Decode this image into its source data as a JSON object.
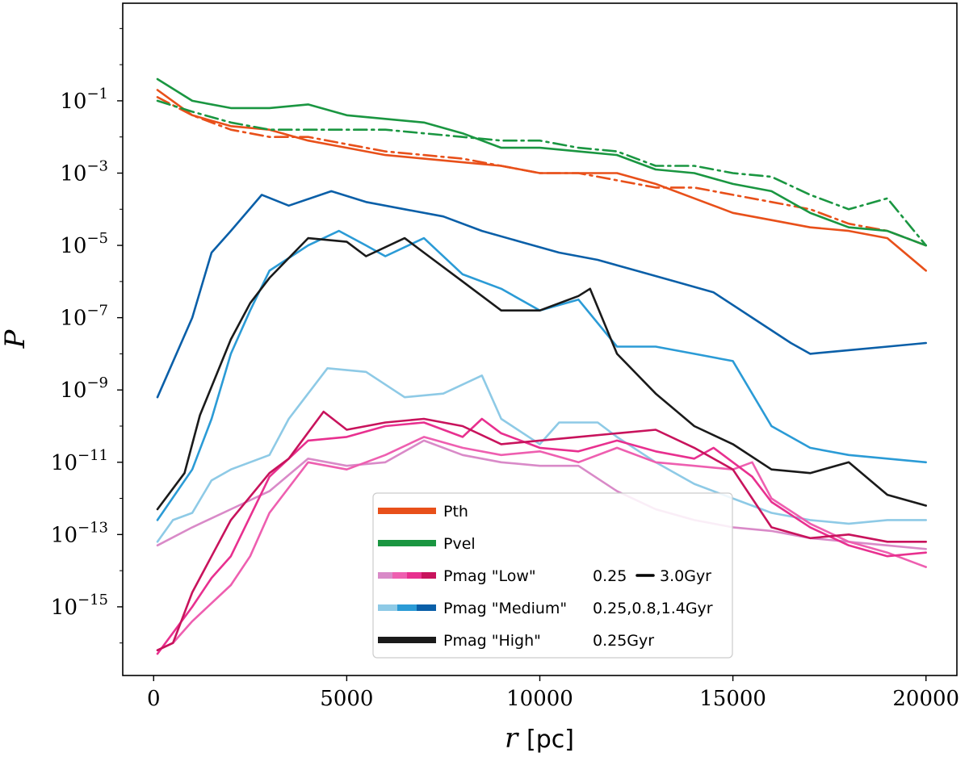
{
  "chart_data": {
    "type": "line",
    "xlabel": "r",
    "xlabel_unit": "[pc]",
    "ylabel": "P",
    "xlim": [
      -800,
      20800
    ],
    "ylim_log10": [
      -16.9,
      1.7
    ],
    "yscale": "log",
    "xticks": [
      0,
      5000,
      10000,
      15000,
      20000
    ],
    "xtick_labels": [
      "0",
      "5000",
      "10000",
      "15000",
      "20000"
    ],
    "yticks_exp": [
      -1,
      -3,
      -5,
      -7,
      -9,
      -11,
      -13,
      -15
    ],
    "ytick_base": "10",
    "ytick_exponents": [
      "−1",
      "−3",
      "−5",
      "−7",
      "−9",
      "−11",
      "−13",
      "−15"
    ],
    "colors": {
      "pth": "#e8501a",
      "pvel": "#1a9641",
      "low": [
        "#d98ac8",
        "#ee5fb0",
        "#e8308f",
        "#c8135c"
      ],
      "medium": [
        "#8ecae6",
        "#2b9bd6",
        "#0a5fa8"
      ],
      "high": "#1a1a1a"
    },
    "legend": {
      "position": "lower-center",
      "entries": [
        {
          "label": "Pth",
          "extra": ""
        },
        {
          "label": "Pvel",
          "extra": ""
        },
        {
          "label": "Pmag \"Low\"",
          "extra_left": "0.25",
          "extra_right": "3.0Gyr"
        },
        {
          "label": "Pmag \"Medium\"",
          "extra": "0.25,0.8,1.4Gyr"
        },
        {
          "label": "Pmag \"High\"",
          "extra": "0.25Gyr"
        }
      ]
    },
    "series": [
      {
        "name": "Pth solid",
        "color": "#e8501a",
        "dash": "solid",
        "x": [
          100,
          1000,
          2000,
          3000,
          4000,
          5000,
          6000,
          7000,
          8000,
          9000,
          10000,
          11000,
          12000,
          13000,
          14000,
          15000,
          16000,
          17000,
          18000,
          19000,
          20000
        ],
        "y": [
          -0.7,
          -1.4,
          -1.7,
          -1.8,
          -2.1,
          -2.3,
          -2.5,
          -2.6,
          -2.7,
          -2.8,
          -3.0,
          -3.0,
          -3.0,
          -3.3,
          -3.7,
          -4.1,
          -4.3,
          -4.5,
          -4.6,
          -4.8,
          -5.7
        ]
      },
      {
        "name": "Pth dashdot",
        "color": "#e8501a",
        "dash": "dashdot",
        "x": [
          100,
          1000,
          2000,
          3000,
          4000,
          5000,
          6000,
          7000,
          8000,
          9000,
          10000,
          11000,
          12000,
          13000,
          14000,
          15000,
          16000,
          17000,
          18000,
          19000,
          20000
        ],
        "y": [
          -0.9,
          -1.4,
          -1.8,
          -2.0,
          -2.0,
          -2.2,
          -2.4,
          -2.5,
          -2.6,
          -2.8,
          -3.0,
          -3.0,
          -3.2,
          -3.4,
          -3.4,
          -3.6,
          -3.8,
          -4.0,
          -4.4,
          -4.6,
          -5.0
        ]
      },
      {
        "name": "Pvel solid",
        "color": "#1a9641",
        "dash": "solid",
        "x": [
          100,
          1000,
          2000,
          3000,
          4000,
          5000,
          6000,
          7000,
          8000,
          9000,
          10000,
          11000,
          12000,
          13000,
          14000,
          15000,
          16000,
          17000,
          18000,
          19000,
          20000
        ],
        "y": [
          -0.4,
          -1.0,
          -1.2,
          -1.2,
          -1.1,
          -1.4,
          -1.5,
          -1.6,
          -1.9,
          -2.3,
          -2.3,
          -2.4,
          -2.5,
          -2.9,
          -3.0,
          -3.3,
          -3.5,
          -4.1,
          -4.5,
          -4.6,
          -5.0
        ]
      },
      {
        "name": "Pvel dashdot",
        "color": "#1a9641",
        "dash": "dashdot",
        "x": [
          100,
          1000,
          2000,
          3000,
          4000,
          5000,
          6000,
          7000,
          8000,
          9000,
          10000,
          11000,
          12000,
          13000,
          14000,
          15000,
          16000,
          17000,
          18000,
          19000,
          20000
        ],
        "y": [
          -1.0,
          -1.3,
          -1.6,
          -1.8,
          -1.8,
          -1.8,
          -1.8,
          -1.9,
          -2.0,
          -2.1,
          -2.1,
          -2.3,
          -2.4,
          -2.8,
          -2.8,
          -3.0,
          -3.1,
          -3.6,
          -4.0,
          -3.7,
          -5.0
        ]
      },
      {
        "name": "Pmag Medium 1.4Gyr",
        "color": "#0a5fa8",
        "dash": "solid",
        "x": [
          100,
          1000,
          1500,
          2000,
          2800,
          3500,
          4600,
          5500,
          6500,
          7500,
          8500,
          9500,
          10500,
          11500,
          12500,
          13500,
          14500,
          15500,
          16500,
          17000,
          18000,
          19000,
          20000
        ],
        "y": [
          -9.2,
          -7.0,
          -5.2,
          -4.6,
          -3.6,
          -3.9,
          -3.5,
          -3.8,
          -4.0,
          -4.2,
          -4.6,
          -4.9,
          -5.2,
          -5.4,
          -5.7,
          -6.0,
          -6.3,
          -7.0,
          -7.7,
          -8.0,
          -7.9,
          -7.8,
          -7.7
        ]
      },
      {
        "name": "Pmag Medium 0.8Gyr",
        "color": "#2b9bd6",
        "dash": "solid",
        "x": [
          100,
          1000,
          1500,
          2000,
          2500,
          3000,
          4000,
          4800,
          5500,
          6000,
          7000,
          8000,
          9000,
          10000,
          11000,
          12000,
          13000,
          14000,
          15000,
          16000,
          17000,
          18000,
          19000,
          20000
        ],
        "y": [
          -12.6,
          -11.2,
          -9.8,
          -8.0,
          -6.8,
          -5.7,
          -5.0,
          -4.6,
          -5.0,
          -5.3,
          -4.8,
          -5.8,
          -6.2,
          -6.8,
          -6.5,
          -7.8,
          -7.8,
          -8.0,
          -8.2,
          -10.0,
          -10.6,
          -10.8,
          -10.9,
          -11.0
        ]
      },
      {
        "name": "Pmag High 0.25Gyr",
        "color": "#1a1a1a",
        "dash": "solid",
        "x": [
          100,
          800,
          1200,
          2000,
          2500,
          3000,
          4000,
          5000,
          5500,
          6500,
          7000,
          8000,
          9000,
          10000,
          11000,
          11300,
          12000,
          13000,
          14000,
          15000,
          16000,
          17000,
          18000,
          19000,
          20000
        ],
        "y": [
          -12.3,
          -11.3,
          -9.7,
          -7.6,
          -6.6,
          -5.9,
          -4.8,
          -4.9,
          -5.3,
          -4.8,
          -5.2,
          -6.0,
          -6.8,
          -6.8,
          -6.4,
          -6.2,
          -8.0,
          -9.1,
          -10.0,
          -10.5,
          -11.2,
          -11.3,
          -11.0,
          -11.9,
          -12.2
        ]
      },
      {
        "name": "Pmag Medium 0.25Gyr",
        "color": "#8ecae6",
        "dash": "solid",
        "x": [
          100,
          500,
          1000,
          1500,
          2000,
          3000,
          3500,
          4500,
          5500,
          6500,
          7500,
          8500,
          9000,
          10000,
          10500,
          11500,
          12000,
          13000,
          14000,
          15000,
          16000,
          17000,
          18000,
          19000,
          20000
        ],
        "y": [
          -13.2,
          -12.6,
          -12.4,
          -11.5,
          -11.2,
          -10.8,
          -9.8,
          -8.4,
          -8.5,
          -9.2,
          -9.1,
          -8.6,
          -9.8,
          -10.5,
          -9.9,
          -9.9,
          -10.3,
          -11.0,
          -11.6,
          -12.0,
          -12.4,
          -12.6,
          -12.7,
          -12.6,
          -12.6
        ]
      },
      {
        "name": "Pmag Low 3.0Gyr",
        "color": "#d98ac8",
        "dash": "solid",
        "x": [
          100,
          1000,
          2000,
          3000,
          4000,
          5000,
          6000,
          7000,
          8000,
          9000,
          10000,
          11000,
          12000,
          13000,
          14000,
          15000,
          16000,
          17000,
          18000,
          19000,
          20000
        ],
        "y": [
          -13.3,
          -12.8,
          -12.3,
          -11.8,
          -10.9,
          -11.1,
          -11.0,
          -10.4,
          -10.8,
          -11.0,
          -11.1,
          -11.1,
          -11.8,
          -12.3,
          -12.6,
          -12.8,
          -12.9,
          -13.1,
          -13.2,
          -13.3,
          -13.4
        ]
      },
      {
        "name": "Pmag Low 2.0Gyr",
        "color": "#ee5fb0",
        "dash": "solid",
        "x": [
          100,
          500,
          1000,
          2000,
          2500,
          3000,
          4000,
          5000,
          6000,
          7000,
          8000,
          9000,
          10000,
          11000,
          12000,
          13000,
          14000,
          15000,
          15500,
          16000,
          17000,
          18000,
          19000,
          20000
        ],
        "y": [
          -16.2,
          -16.0,
          -15.4,
          -14.4,
          -13.6,
          -12.4,
          -11.0,
          -11.2,
          -10.8,
          -10.3,
          -10.6,
          -10.8,
          -10.7,
          -11.0,
          -10.6,
          -11.0,
          -11.1,
          -11.2,
          -11.0,
          -12.0,
          -12.7,
          -13.2,
          -13.5,
          -13.9
        ]
      },
      {
        "name": "Pmag Low 1.0Gyr",
        "color": "#e8308f",
        "dash": "solid",
        "x": [
          100,
          1000,
          1500,
          2000,
          3000,
          4000,
          5000,
          6000,
          7000,
          8000,
          8500,
          9000,
          10000,
          11000,
          12000,
          13000,
          14000,
          14500,
          15500,
          16000,
          17000,
          18000,
          19000,
          20000
        ],
        "y": [
          -16.3,
          -15.0,
          -14.2,
          -13.6,
          -11.4,
          -10.4,
          -10.3,
          -10.0,
          -9.9,
          -10.3,
          -9.8,
          -10.2,
          -10.6,
          -10.7,
          -10.4,
          -10.7,
          -10.9,
          -10.6,
          -11.4,
          -12.1,
          -12.8,
          -13.3,
          -13.6,
          -13.5
        ]
      },
      {
        "name": "Pmag Low 0.25Gyr",
        "color": "#c8135c",
        "dash": "solid",
        "x": [
          100,
          500,
          1000,
          1500,
          2000,
          3000,
          3500,
          4400,
          5000,
          6000,
          7000,
          8000,
          9000,
          10000,
          11000,
          12000,
          13000,
          14000,
          15000,
          15500,
          16000,
          17000,
          18000,
          19000,
          20000
        ],
        "y": [
          -16.2,
          -16.0,
          -14.6,
          -13.6,
          -12.6,
          -11.3,
          -10.9,
          -9.6,
          -10.1,
          -9.9,
          -9.8,
          -10.0,
          -10.5,
          -10.4,
          -10.3,
          -10.2,
          -10.1,
          -10.6,
          -11.2,
          -12.0,
          -12.8,
          -13.1,
          -13.0,
          -13.2,
          -13.2
        ]
      }
    ]
  }
}
